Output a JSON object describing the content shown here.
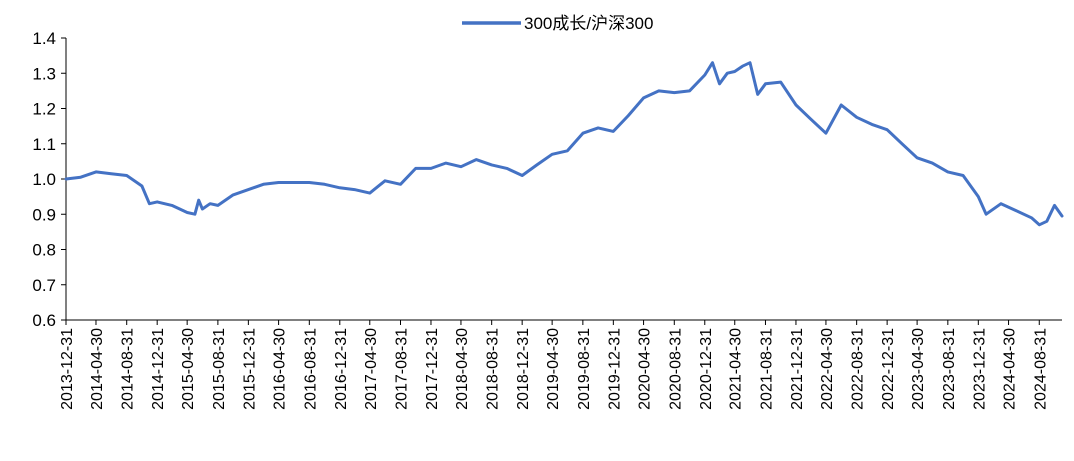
{
  "chart_data": {
    "type": "line",
    "title": "",
    "xlabel": "",
    "ylabel": "",
    "ylim": [
      0.6,
      1.4
    ],
    "yticks": [
      "0.6",
      "0.7",
      "0.8",
      "0.9",
      "1.0",
      "1.1",
      "1.2",
      "1.3",
      "1.4"
    ],
    "grid": false,
    "legend_position": "top-center",
    "series_color": "#4472C4",
    "x_tick_labels": [
      "2013-12-31",
      "2014-04-30",
      "2014-08-31",
      "2014-12-31",
      "2015-04-30",
      "2015-08-31",
      "2015-12-31",
      "2016-04-30",
      "2016-08-31",
      "2016-12-31",
      "2017-04-30",
      "2017-08-31",
      "2017-12-31",
      "2018-04-30",
      "2018-08-31",
      "2018-12-31",
      "2019-04-30",
      "2019-08-31",
      "2019-12-31",
      "2020-04-30",
      "2020-08-31",
      "2020-12-31",
      "2021-04-30",
      "2021-08-31",
      "2021-12-31",
      "2022-04-30",
      "2022-08-31",
      "2022-12-31",
      "2023-04-30",
      "2023-08-31",
      "2023-12-31",
      "2024-04-30",
      "2024-08-31"
    ],
    "series": [
      {
        "name": "300成长/沪深300",
        "x": [
          "2013-12-31",
          "2014-02-28",
          "2014-04-30",
          "2014-06-30",
          "2014-08-31",
          "2014-10-31",
          "2014-11-30",
          "2014-12-31",
          "2015-02-28",
          "2015-03-31",
          "2015-04-30",
          "2015-05-31",
          "2015-06-15",
          "2015-06-30",
          "2015-07-31",
          "2015-08-31",
          "2015-10-31",
          "2015-12-31",
          "2016-02-29",
          "2016-04-30",
          "2016-06-30",
          "2016-08-31",
          "2016-10-31",
          "2016-12-31",
          "2017-02-28",
          "2017-04-30",
          "2017-06-30",
          "2017-08-31",
          "2017-10-31",
          "2017-12-31",
          "2018-02-28",
          "2018-04-30",
          "2018-06-30",
          "2018-08-31",
          "2018-10-31",
          "2018-12-31",
          "2019-02-28",
          "2019-04-30",
          "2019-06-30",
          "2019-08-31",
          "2019-10-31",
          "2019-12-31",
          "2020-02-29",
          "2020-04-30",
          "2020-06-30",
          "2020-08-31",
          "2020-10-31",
          "2020-12-31",
          "2021-01-31",
          "2021-02-28",
          "2021-03-31",
          "2021-04-30",
          "2021-05-31",
          "2021-06-30",
          "2021-07-31",
          "2021-08-31",
          "2021-10-31",
          "2021-12-31",
          "2022-02-28",
          "2022-04-30",
          "2022-06-30",
          "2022-08-31",
          "2022-10-31",
          "2022-12-31",
          "2023-02-28",
          "2023-04-30",
          "2023-06-30",
          "2023-08-31",
          "2023-10-31",
          "2023-12-31",
          "2024-01-31",
          "2024-03-31",
          "2024-05-31",
          "2024-07-31",
          "2024-08-31",
          "2024-09-30",
          "2024-10-31",
          "2024-11-30"
        ],
        "values": [
          1.0,
          1.005,
          1.02,
          1.015,
          1.01,
          0.98,
          0.93,
          0.935,
          0.925,
          0.915,
          0.905,
          0.9,
          0.94,
          0.915,
          0.93,
          0.925,
          0.955,
          0.97,
          0.985,
          0.99,
          0.99,
          0.99,
          0.985,
          0.975,
          0.97,
          0.96,
          0.995,
          0.985,
          1.03,
          1.03,
          1.045,
          1.035,
          1.055,
          1.04,
          1.03,
          1.01,
          1.04,
          1.07,
          1.08,
          1.13,
          1.145,
          1.135,
          1.18,
          1.23,
          1.25,
          1.245,
          1.25,
          1.295,
          1.33,
          1.27,
          1.3,
          1.305,
          1.32,
          1.33,
          1.24,
          1.27,
          1.275,
          1.21,
          1.17,
          1.13,
          1.21,
          1.175,
          1.155,
          1.14,
          1.1,
          1.06,
          1.045,
          1.02,
          1.01,
          0.95,
          0.9,
          0.93,
          0.91,
          0.89,
          0.87,
          0.88,
          0.925,
          0.895
        ]
      }
    ]
  }
}
